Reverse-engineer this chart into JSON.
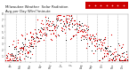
{
  "title": "Milwaukee Weather  Solar Radiation",
  "subtitle": "Avg per Day W/m²/minute",
  "background_color": "#ffffff",
  "plot_bg_color": "#ffffff",
  "grid_color": "#bbbbbb",
  "ylim": [
    0,
    8
  ],
  "ytick_labels": [
    "1",
    "2",
    "3",
    "4",
    "5",
    "6",
    "7",
    "8"
  ],
  "ytick_values": [
    1,
    2,
    3,
    4,
    5,
    6,
    7,
    8
  ],
  "n_points": 365,
  "series1_color": "#dd0000",
  "series2_color": "#000000",
  "legend_box_color": "#cc0000",
  "n_vlines": 12
}
